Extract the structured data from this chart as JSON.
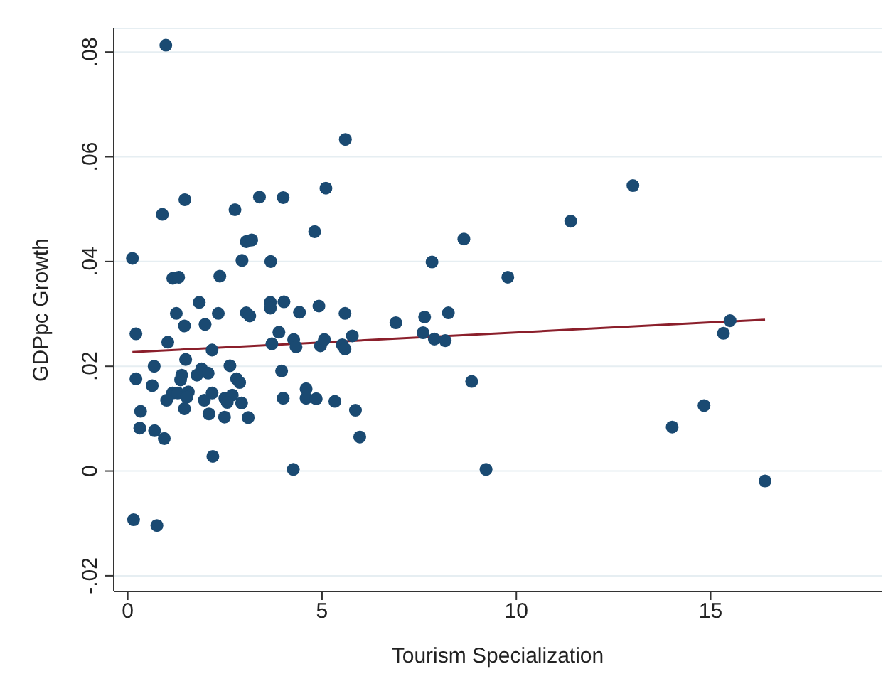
{
  "chart_data": {
    "type": "scatter",
    "xlabel": "Tourism Specialization",
    "ylabel": "GDPpc Growth",
    "xlim": [
      -0.36,
      19.4
    ],
    "ylim": [
      -0.023,
      0.0845
    ],
    "xticks": [
      0,
      5,
      10,
      15
    ],
    "yticks": [
      {
        "value": -0.02,
        "label": "-.02"
      },
      {
        "value": 0,
        "label": "0"
      },
      {
        "value": 0.02,
        "label": ".02"
      },
      {
        "value": 0.04,
        "label": ".04"
      },
      {
        "value": 0.06,
        "label": ".06"
      },
      {
        "value": 0.08,
        "label": ".08"
      }
    ],
    "grid": "y",
    "legend": false,
    "series": [
      {
        "color": "#1a4a72",
        "marker": "circle",
        "x": [
          0.98,
          5.6,
          5.1,
          1.47,
          0.89,
          2.76,
          3.39,
          4.0,
          4.81,
          0.12,
          3.05,
          3.19,
          2.94,
          3.68,
          1.16,
          1.31,
          2.37,
          1.84,
          1.25,
          2.33,
          1.46,
          1.99,
          3.05,
          3.14,
          3.67,
          3.67,
          4.02,
          4.42,
          4.92,
          5.59,
          6.9,
          0.21,
          1.03,
          2.17,
          3.89,
          3.71,
          4.27,
          4.33,
          4.96,
          5.06,
          5.52,
          5.59,
          5.78,
          1.49,
          0.68,
          0.21,
          2.63,
          1.78,
          1.9,
          2.07,
          1.39,
          1.36,
          2.8,
          2.88,
          3.96,
          0.63,
          1.15,
          1.29,
          1.56,
          1.52,
          1.0,
          1.46,
          2.17,
          1.97,
          2.09,
          2.5,
          2.69,
          2.56,
          2.93,
          2.49,
          3.1,
          4.59,
          4.59,
          4.85,
          4.0,
          5.33,
          5.86,
          5.97,
          0.33,
          0.31,
          0.69,
          0.94,
          2.19,
          4.26,
          0.15,
          0.75,
          8.65,
          11.4,
          7.83,
          9.78,
          7.64,
          8.25,
          7.6,
          7.89,
          8.17,
          8.85,
          9.22,
          13.0,
          15.5,
          15.33,
          14.83,
          14.01,
          16.4
        ],
        "values": [
          0.0813,
          0.0633,
          0.054,
          0.0518,
          0.049,
          0.0499,
          0.0523,
          0.0522,
          0.0457,
          0.0406,
          0.0438,
          0.0441,
          0.0402,
          0.04,
          0.0368,
          0.037,
          0.0372,
          0.0322,
          0.0301,
          0.0301,
          0.0277,
          0.028,
          0.0302,
          0.0296,
          0.0322,
          0.0311,
          0.0323,
          0.0303,
          0.0315,
          0.0301,
          0.0283,
          0.0262,
          0.0246,
          0.0231,
          0.0265,
          0.0243,
          0.0251,
          0.0237,
          0.0239,
          0.0251,
          0.0241,
          0.0233,
          0.0258,
          0.0213,
          0.02,
          0.0176,
          0.0201,
          0.0183,
          0.0195,
          0.0187,
          0.0183,
          0.0174,
          0.0176,
          0.0169,
          0.0191,
          0.0163,
          0.0149,
          0.0149,
          0.0151,
          0.0141,
          0.0135,
          0.0119,
          0.0149,
          0.0135,
          0.0109,
          0.0139,
          0.0145,
          0.0131,
          0.013,
          0.0103,
          0.0102,
          0.0157,
          0.0139,
          0.0138,
          0.0139,
          0.0133,
          0.0116,
          0.0065,
          0.0114,
          0.0082,
          0.0077,
          0.0062,
          0.0028,
          0.0003,
          -0.0093,
          -0.0104,
          0.0443,
          0.0477,
          0.0399,
          0.037,
          0.0294,
          0.0302,
          0.0264,
          0.0252,
          0.0249,
          0.0171,
          0.0003,
          0.0545,
          0.0287,
          0.0263,
          0.0125,
          0.0084,
          -0.0019
        ]
      },
      {
        "type": "line",
        "color": "#8b1f2b",
        "marker": "none",
        "x": [
          0.12,
          16.4
        ],
        "values": [
          0.0227,
          0.0289
        ]
      }
    ]
  }
}
